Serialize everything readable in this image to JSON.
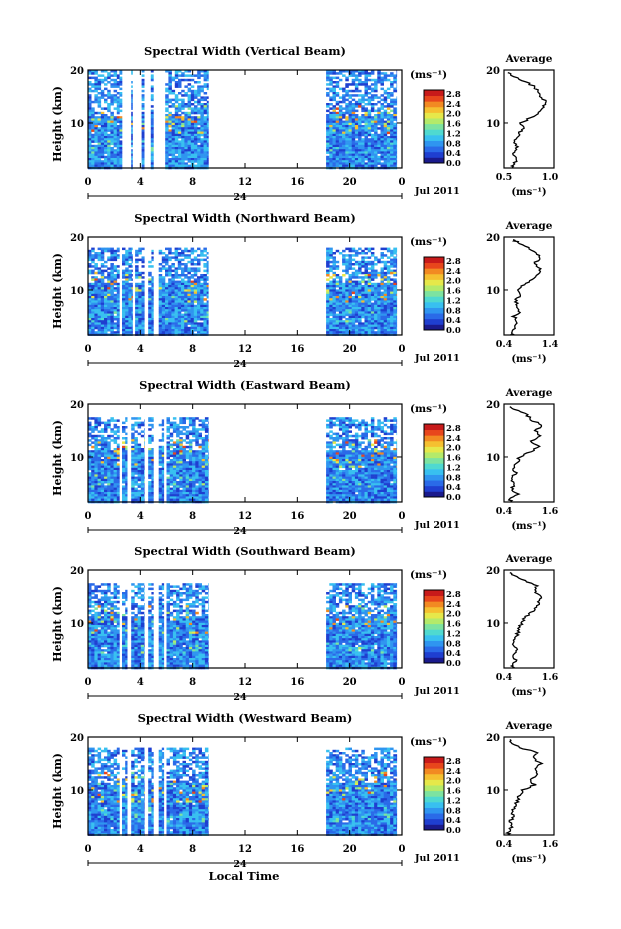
{
  "figure": {
    "x_axis_label": "Local Time",
    "date_label": "Jul 2011",
    "day_label": "24",
    "colorbar_unit": "(ms⁻¹)",
    "colorbar_ticks": [
      "2.8",
      "2.4",
      "2.0",
      "1.6",
      "1.2",
      "0.8",
      "0.4",
      "0.0"
    ],
    "colormap": [
      "#1a1a8c",
      "#1f3fd0",
      "#2a6ae8",
      "#2f95f0",
      "#38c0f0",
      "#4fd9d0",
      "#7de3a0",
      "#b4ea6a",
      "#e6e84a",
      "#f5c030",
      "#f28a22",
      "#e8461c",
      "#c81a1a"
    ],
    "no_data_color": "#ffffff"
  },
  "chart_data": [
    {
      "type": "heatmap",
      "title": "Spectral Width (Vertical Beam)",
      "xlabel": "Local Time",
      "ylabel": "Height (km)",
      "xlim": [
        0,
        24
      ],
      "x_ticks": [
        "0",
        "4",
        "8",
        "12",
        "16",
        "20",
        "0"
      ],
      "ylim": [
        1.5,
        20
      ],
      "y_ticks": [
        "20",
        "10"
      ],
      "colorbar_label": "(ms⁻¹)",
      "clim": [
        0.0,
        3.0
      ],
      "data_columns_local_time": [
        [
          0,
          2.4
        ],
        [
          2.4,
          2.6
        ],
        [
          3.3,
          3.4
        ],
        [
          4.1,
          4.3
        ],
        [
          4.8,
          5.0
        ],
        [
          5.9,
          9.2
        ],
        [
          18.2,
          23.6
        ]
      ],
      "top_km": 20.0,
      "profile": {
        "title": "Average",
        "xlabel": "(ms⁻¹)",
        "xlim": [
          0.5,
          1.15
        ],
        "x_ticks": [
          "0.5",
          "1.0"
        ],
        "y_ticks": [
          "20",
          "10"
        ],
        "height_km": [
          1.5,
          2,
          3,
          4,
          5,
          6,
          7,
          8,
          9,
          10,
          11,
          12,
          13,
          14,
          15,
          16,
          17,
          18,
          19,
          19.5
        ],
        "width_ms": [
          0.6,
          0.62,
          0.66,
          0.62,
          0.68,
          0.64,
          0.66,
          0.7,
          0.75,
          0.72,
          0.85,
          0.95,
          1.0,
          1.05,
          0.98,
          0.95,
          0.88,
          0.75,
          0.6,
          0.55
        ]
      }
    },
    {
      "type": "heatmap",
      "title": "Spectral Width (Northward Beam)",
      "xlabel": "Local Time",
      "ylabel": "Height (km)",
      "xlim": [
        0,
        24
      ],
      "x_ticks": [
        "0",
        "4",
        "8",
        "12",
        "16",
        "20",
        "0"
      ],
      "ylim": [
        1.5,
        20
      ],
      "y_ticks": [
        "20",
        "10"
      ],
      "colorbar_label": "(ms⁻¹)",
      "clim": [
        0.0,
        3.0
      ],
      "data_columns_local_time": [
        [
          0,
          2.4
        ],
        [
          2.6,
          3.4
        ],
        [
          3.6,
          4.3
        ],
        [
          4.6,
          5.0
        ],
        [
          5.4,
          9.2
        ],
        [
          18.2,
          23.6
        ]
      ],
      "top_km": 18.0,
      "profile": {
        "title": "Average",
        "xlabel": "(ms⁻¹)",
        "xlim": [
          0.4,
          1.5
        ],
        "x_ticks": [
          "0.4",
          "1.4"
        ],
        "y_ticks": [
          "20",
          "10"
        ],
        "height_km": [
          1.5,
          2,
          3,
          4,
          5,
          6,
          7,
          8,
          9,
          10,
          11,
          12,
          13,
          14,
          15,
          16,
          17,
          18,
          19,
          19.5
        ],
        "width_ms": [
          0.55,
          0.6,
          0.65,
          0.7,
          0.62,
          0.75,
          0.7,
          0.66,
          0.75,
          0.7,
          0.85,
          1.0,
          1.15,
          1.2,
          1.05,
          1.2,
          1.1,
          0.95,
          0.7,
          0.6
        ]
      }
    },
    {
      "type": "heatmap",
      "title": "Spectral Width (Eastward Beam)",
      "xlabel": "Local Time",
      "ylabel": "Height (km)",
      "xlim": [
        0,
        24
      ],
      "x_ticks": [
        "0",
        "4",
        "8",
        "12",
        "16",
        "20",
        "0"
      ],
      "ylim": [
        1.5,
        20
      ],
      "y_ticks": [
        "20",
        "10"
      ],
      "colorbar_label": "(ms⁻¹)",
      "clim": [
        0.0,
        3.0
      ],
      "data_columns_local_time": [
        [
          0,
          2.4
        ],
        [
          2.6,
          3.0
        ],
        [
          3.3,
          4.3
        ],
        [
          4.6,
          5.0
        ],
        [
          5.4,
          5.8
        ],
        [
          6.0,
          9.2
        ],
        [
          18.2,
          23.6
        ]
      ],
      "top_km": 17.5,
      "profile": {
        "title": "Average",
        "xlabel": "(ms⁻¹)",
        "xlim": [
          0.4,
          1.7
        ],
        "x_ticks": [
          "0.4",
          "1.6"
        ],
        "y_ticks": [
          "20",
          "10"
        ],
        "height_km": [
          1.5,
          2,
          3,
          4,
          5,
          6,
          7,
          8,
          9,
          10,
          11,
          12,
          13,
          14,
          15,
          16,
          17,
          18,
          19,
          19.5
        ],
        "width_ms": [
          0.6,
          0.55,
          0.75,
          0.6,
          0.65,
          0.6,
          0.7,
          0.65,
          0.75,
          0.8,
          1.1,
          1.3,
          1.1,
          1.35,
          1.2,
          1.4,
          1.1,
          1.0,
          0.7,
          0.55
        ]
      }
    },
    {
      "type": "heatmap",
      "title": "Spectral Width (Southward Beam)",
      "xlabel": "Local Time",
      "ylabel": "Height (km)",
      "xlim": [
        0,
        24
      ],
      "x_ticks": [
        "0",
        "4",
        "8",
        "12",
        "16",
        "20",
        "0"
      ],
      "ylim": [
        1.5,
        20
      ],
      "y_ticks": [
        "20",
        "10"
      ],
      "colorbar_label": "(ms⁻¹)",
      "clim": [
        0.0,
        3.0
      ],
      "data_columns_local_time": [
        [
          0,
          2.4
        ],
        [
          2.6,
          3.0
        ],
        [
          3.3,
          4.3
        ],
        [
          4.6,
          5.0
        ],
        [
          5.4,
          5.8
        ],
        [
          6.0,
          9.2
        ],
        [
          18.2,
          23.6
        ]
      ],
      "top_km": 17.5,
      "profile": {
        "title": "Average",
        "xlabel": "(ms⁻¹)",
        "xlim": [
          0.4,
          1.7
        ],
        "x_ticks": [
          "0.4",
          "1.6"
        ],
        "y_ticks": [
          "20",
          "10"
        ],
        "height_km": [
          1.5,
          2,
          3,
          4,
          5,
          6,
          7,
          8,
          9,
          10,
          11,
          12,
          13,
          14,
          15,
          16,
          17,
          18,
          19,
          19.5
        ],
        "width_ms": [
          0.65,
          0.6,
          0.7,
          0.6,
          0.75,
          0.65,
          0.7,
          0.75,
          0.8,
          0.85,
          0.95,
          1.1,
          1.25,
          1.3,
          1.35,
          1.2,
          1.25,
          0.95,
          0.65,
          0.55
        ]
      }
    },
    {
      "type": "heatmap",
      "title": "Spectral Width (Westward Beam)",
      "xlabel": "Local Time",
      "ylabel": "Height (km)",
      "xlim": [
        0,
        24
      ],
      "x_ticks": [
        "0",
        "4",
        "8",
        "12",
        "16",
        "20",
        "0"
      ],
      "ylim": [
        1.5,
        20
      ],
      "y_ticks": [
        "20",
        "10"
      ],
      "colorbar_label": "(ms⁻¹)",
      "clim": [
        0.0,
        3.0
      ],
      "data_columns_local_time": [
        [
          0,
          2.4
        ],
        [
          2.6,
          3.0
        ],
        [
          3.3,
          4.3
        ],
        [
          4.6,
          5.0
        ],
        [
          5.4,
          5.8
        ],
        [
          6.0,
          9.2
        ],
        [
          18.2,
          23.6
        ]
      ],
      "top_km": 18.0,
      "profile": {
        "title": "Average",
        "xlabel": "(ms⁻¹)",
        "xlim": [
          0.4,
          1.7
        ],
        "x_ticks": [
          "0.4",
          "1.6"
        ],
        "y_ticks": [
          "20",
          "10"
        ],
        "height_km": [
          1.5,
          2,
          3,
          4,
          5,
          6,
          7,
          8,
          9,
          10,
          11,
          12,
          13,
          14,
          15,
          16,
          17,
          18,
          19,
          19.5
        ],
        "width_ms": [
          0.55,
          0.5,
          0.6,
          0.55,
          0.65,
          0.6,
          0.7,
          0.75,
          0.8,
          0.9,
          1.2,
          1.05,
          1.3,
          1.25,
          1.35,
          1.15,
          1.3,
          0.8,
          0.6,
          0.55
        ]
      }
    }
  ]
}
